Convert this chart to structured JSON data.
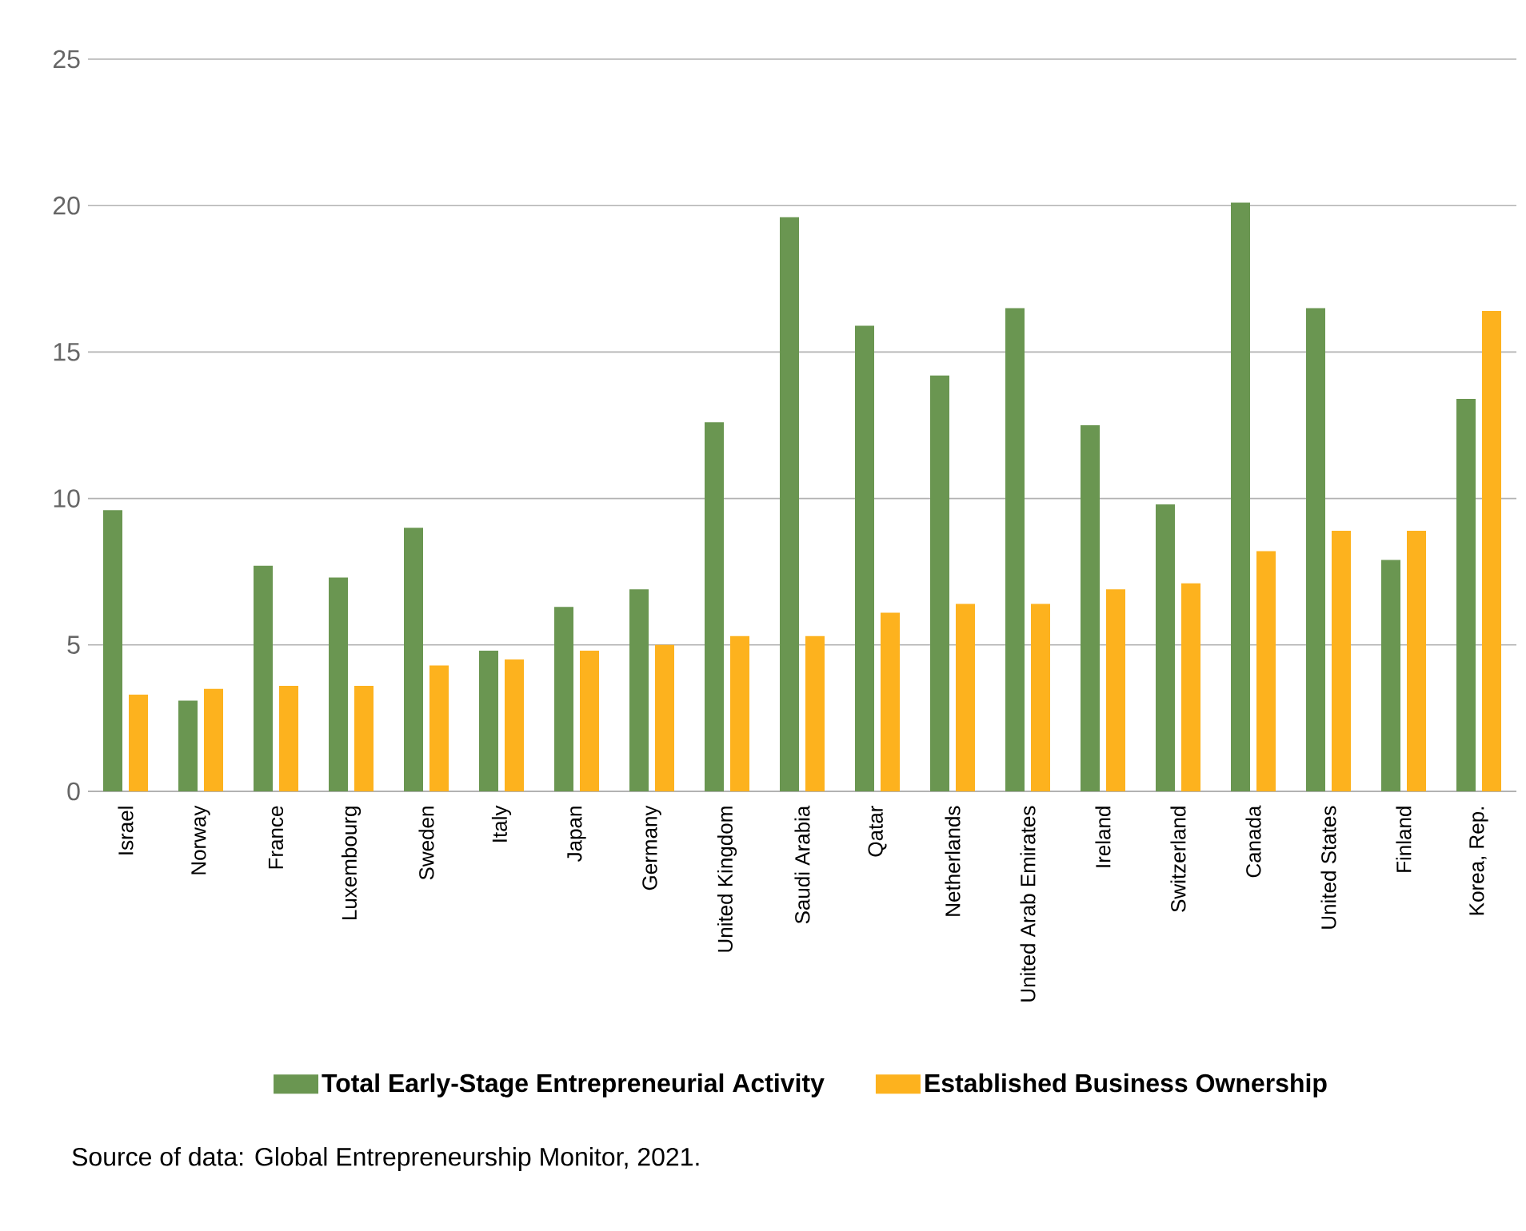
{
  "chart_data": {
    "type": "bar",
    "categories": [
      "Israel",
      "Norway",
      "France",
      "Luxembourg",
      "Sweden",
      "Italy",
      "Japan",
      "Germany",
      "United Kingdom",
      "Saudi Arabia",
      "Qatar",
      "Netherlands",
      "United Arab Emirates",
      "Ireland",
      "Switzerland",
      "Canada",
      "United States",
      "Finland",
      "Korea, Rep."
    ],
    "series": [
      {
        "name": "Total Early-Stage Entrepreneurial Activity",
        "color": "#6a9651",
        "values": [
          9.6,
          3.1,
          7.7,
          7.3,
          9.0,
          4.8,
          6.3,
          6.9,
          12.6,
          19.6,
          15.9,
          14.2,
          16.5,
          12.5,
          9.8,
          20.1,
          16.5,
          7.9,
          13.4
        ]
      },
      {
        "name": "Established Business Ownership",
        "color": "#fdb21e",
        "values": [
          3.3,
          3.5,
          3.6,
          3.6,
          4.3,
          4.5,
          4.8,
          5.0,
          5.3,
          5.3,
          6.1,
          6.4,
          6.4,
          6.9,
          7.1,
          8.2,
          8.9,
          8.9,
          16.4
        ]
      }
    ],
    "ylim": [
      0,
      25
    ],
    "yticks": [
      0,
      5,
      10,
      15,
      20,
      25
    ],
    "grid": "y",
    "legend": "bottom",
    "annotations": [
      "Source of data: Global Entrepreneurship Monitor, 2021."
    ]
  }
}
